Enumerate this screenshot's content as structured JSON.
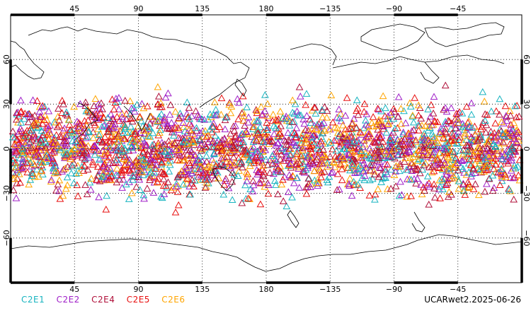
{
  "map": {
    "projection": "equirectangular",
    "lon_range": [
      0,
      360
    ],
    "lat_range": [
      -90,
      90
    ],
    "top_lon_labels": [
      "45",
      "90",
      "135",
      "180",
      "−135",
      "−90",
      "−45"
    ],
    "bottom_lon_labels": [
      "45",
      "90",
      "135",
      "180",
      "−135",
      "−90",
      "−45"
    ],
    "left_lat_labels": [
      "60",
      "30",
      "0",
      "−30",
      "−60"
    ],
    "right_lat_labels": [
      "60",
      "30",
      "0",
      "−30",
      "−60"
    ],
    "gridlines": "dotted",
    "marker_shape": "open-triangle",
    "observation_lat_band": [
      -45,
      45
    ]
  },
  "legend": [
    {
      "label": "C2E1",
      "color": "#18b4c0"
    },
    {
      "label": "C2E2",
      "color": "#a020c8"
    },
    {
      "label": "C2E4",
      "color": "#b0103a"
    },
    {
      "label": "C2E5",
      "color": "#e81010"
    },
    {
      "label": "C2E6",
      "color": "#ffa500"
    }
  ],
  "caption": "UCARwet2.2025-06-26"
}
